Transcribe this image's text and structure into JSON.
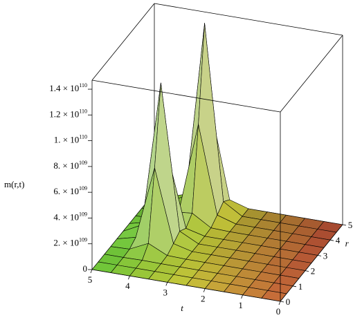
{
  "chart_data": {
    "type": "surface",
    "zlabel": "m(r,t)",
    "xlabel": "t",
    "ylabel": "r",
    "x": [
      0,
      0.5,
      1,
      1.5,
      2,
      2.5,
      3,
      3.5,
      4,
      4.5,
      5
    ],
    "y": [
      0,
      0.5,
      1,
      1.5,
      2,
      2.5,
      3,
      3.5,
      4,
      4.5,
      5
    ],
    "z": [
      [
        0,
        0,
        0,
        0,
        0,
        0,
        0,
        0,
        0,
        0,
        0
      ],
      [
        0,
        0,
        0,
        0,
        0,
        0,
        0,
        0,
        0,
        0,
        0
      ],
      [
        0,
        0,
        0,
        0,
        0,
        0,
        0,
        0,
        2.4e+107,
        0,
        0
      ],
      [
        0,
        0,
        0,
        0,
        0,
        0,
        0,
        4.6e+107,
        7.4e+108,
        4.6e+107,
        0
      ],
      [
        0,
        0,
        0,
        0,
        0,
        0,
        0,
        3.7e+108,
        6e+109,
        3.7e+108,
        0
      ],
      [
        0,
        0,
        0,
        0,
        0,
        0,
        0,
        7.4e+108,
        1.2e+110,
        7.4e+108,
        0
      ],
      [
        0,
        0,
        0,
        0,
        0,
        0,
        0,
        3.7e+108,
        6e+109,
        3.7e+108,
        0
      ],
      [
        0,
        0,
        0,
        0,
        0,
        0,
        5.6e+107,
        9.5e+108,
        8e+108,
        4.6e+107,
        0
      ],
      [
        0,
        0,
        0,
        0,
        0,
        0,
        4.5e+108,
        7.25e+109,
        4.7e+108,
        0,
        0
      ],
      [
        0,
        0,
        0,
        0,
        0,
        0,
        9e+108,
        1.45e+110,
        9e+108,
        0,
        0
      ],
      [
        0,
        0,
        0,
        0,
        0,
        0,
        4.5e+108,
        7.25e+109,
        4.5e+108,
        0,
        0
      ]
    ],
    "xlim": [
      0,
      5
    ],
    "ylim": [
      0,
      5
    ],
    "zlim": [
      0,
      1.47e+110
    ],
    "xticks": [
      0,
      1,
      2,
      3,
      4,
      5
    ],
    "yticks": [
      0,
      1,
      2,
      3,
      4,
      5
    ],
    "zticks": [
      0,
      {
        "value": 2e+109,
        "label": "2. × 10",
        "exponent": "109"
      },
      {
        "value": 4e+109,
        "label": "4. × 10",
        "exponent": "109"
      },
      {
        "value": 6e+109,
        "label": "6. × 10",
        "exponent": "109"
      },
      {
        "value": 8e+109,
        "label": "8. × 10",
        "exponent": "109"
      },
      {
        "value": 1e+110,
        "label": "1. × 10",
        "exponent": "110"
      },
      {
        "value": 1.2e+110,
        "label": "1.2 × 10",
        "exponent": "110"
      },
      {
        "value": 1.4e+110,
        "label": "1.4 × 10",
        "exponent": "110"
      }
    ]
  }
}
